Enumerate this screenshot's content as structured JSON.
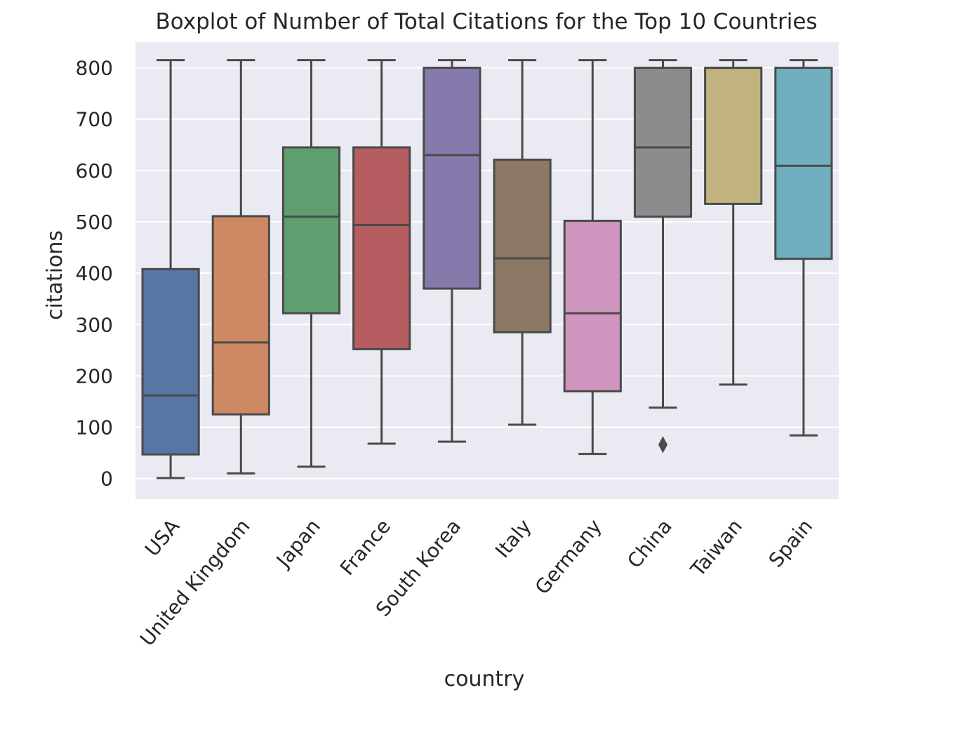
{
  "chart_data": {
    "type": "box",
    "title": "Boxplot of Number of Total Citations for the Top 10 Countries",
    "xlabel": "country",
    "ylabel": "citations",
    "ylim": [
      -40,
      850
    ],
    "yticks": [
      0,
      100,
      200,
      300,
      400,
      500,
      600,
      700,
      800
    ],
    "grid": true,
    "categories": [
      "USA",
      "United Kingdom",
      "Japan",
      "France",
      "South Korea",
      "Italy",
      "Germany",
      "China",
      "Taiwan",
      "Spain"
    ],
    "boxes": [
      {
        "category": "USA",
        "whisker_low": 1,
        "q1": 47,
        "median": 162,
        "q3": 408,
        "whisker_high": 815,
        "color": "#5875a4"
      },
      {
        "category": "United Kingdom",
        "whisker_low": 10,
        "q1": 125,
        "median": 265,
        "q3": 511,
        "whisker_high": 815,
        "color": "#cc8963"
      },
      {
        "category": "Japan",
        "whisker_low": 23,
        "q1": 322,
        "median": 510,
        "q3": 645,
        "whisker_high": 815,
        "color": "#5f9e6e"
      },
      {
        "category": "France",
        "whisker_low": 68,
        "q1": 252,
        "median": 494,
        "q3": 645,
        "whisker_high": 815,
        "color": "#b55d60"
      },
      {
        "category": "South Korea",
        "whisker_low": 72,
        "q1": 370,
        "median": 630,
        "q3": 800,
        "whisker_high": 815,
        "color": "#857aab"
      },
      {
        "category": "Italy",
        "whisker_low": 105,
        "q1": 285,
        "median": 429,
        "q3": 621,
        "whisker_high": 815,
        "color": "#8d7866"
      },
      {
        "category": "Germany",
        "whisker_low": 48,
        "q1": 170,
        "median": 322,
        "q3": 502,
        "whisker_high": 815,
        "color": "#d095bf"
      },
      {
        "category": "China",
        "whisker_low": 138,
        "q1": 510,
        "median": 645,
        "q3": 800,
        "whisker_high": 815,
        "outliers": [
          66
        ],
        "color": "#8c8c8c"
      },
      {
        "category": "Taiwan",
        "whisker_low": 183,
        "q1": 535,
        "median": 800,
        "q3": 800,
        "whisker_high": 815,
        "color": "#c1b37f"
      },
      {
        "category": "Spain",
        "whisker_low": 84,
        "q1": 428,
        "median": 609,
        "q3": 800,
        "whisker_high": 815,
        "color": "#71aec0"
      }
    ],
    "colors": {
      "background": "#eaeaf2",
      "grid": "#ffffff",
      "lines": "#4a4a4a"
    }
  }
}
